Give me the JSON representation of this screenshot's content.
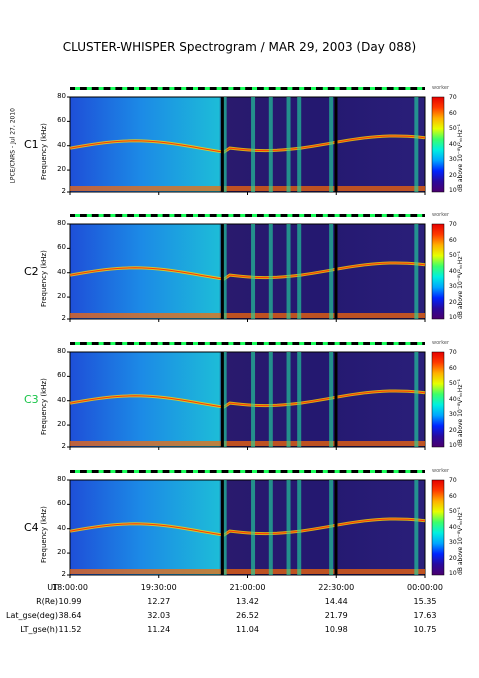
{
  "title": "CLUSTER-WHISPER Spectrogram / MAR 29, 2003 (Day 088)",
  "side_note": "LPCE/CNRS - Jul 27, 2010",
  "colorbar": {
    "label": "dB above 10⁻⁸V²ₕₖHz⁻¹",
    "corner_text": "worker",
    "ticks": [
      70,
      60,
      50,
      40,
      30,
      20,
      10
    ],
    "colors": [
      "#4b006e",
      "#2a0a9c",
      "#0024ff",
      "#00a6ff",
      "#00f0e0",
      "#3cff6a",
      "#e6ff00",
      "#ffb000",
      "#ff3a00",
      "#e60000"
    ]
  },
  "panels": [
    {
      "name": "C1",
      "color": "#000000"
    },
    {
      "name": "C2",
      "color": "#000000"
    },
    {
      "name": "C3",
      "color": "#17c447"
    },
    {
      "name": "C4",
      "color": "#000000"
    }
  ],
  "y_axis": {
    "label": "Frequency (kHz)",
    "ticks": [
      80,
      60,
      40,
      20,
      2
    ]
  },
  "table": {
    "row_labels": [
      "UT",
      "R(Re)",
      "Lat_gse(deg)",
      "LT_gse(h)"
    ],
    "columns": [
      [
        "18:00:00",
        "10.99",
        "38.64",
        "11.52"
      ],
      [
        "19:30:00",
        "12.27",
        "32.03",
        "11.24"
      ],
      [
        "21:00:00",
        "13.42",
        "26.52",
        "11.04"
      ],
      [
        "22:30:00",
        "14.44",
        "21.79",
        "10.98"
      ],
      [
        "00:00:00",
        "15.35",
        "17.63",
        "10.75"
      ]
    ]
  },
  "chart_data": {
    "type": "heatmap",
    "title": "CLUSTER-WHISPER Spectrogram / MAR 29, 2003 (Day 088)",
    "xlabel": "UT",
    "ylabel": "Frequency (kHz)",
    "x_ticks": [
      "18:00:00",
      "19:30:00",
      "21:00:00",
      "22:30:00",
      "00:00:00"
    ],
    "y_ticks": [
      2,
      20,
      40,
      60,
      80
    ],
    "ylim": [
      2,
      80
    ],
    "zlabel": "dB above 10^-8 V^2 Hz^-1",
    "zlim": [
      10,
      70
    ],
    "series": [
      "C1",
      "C2",
      "C3",
      "C4"
    ]
  }
}
